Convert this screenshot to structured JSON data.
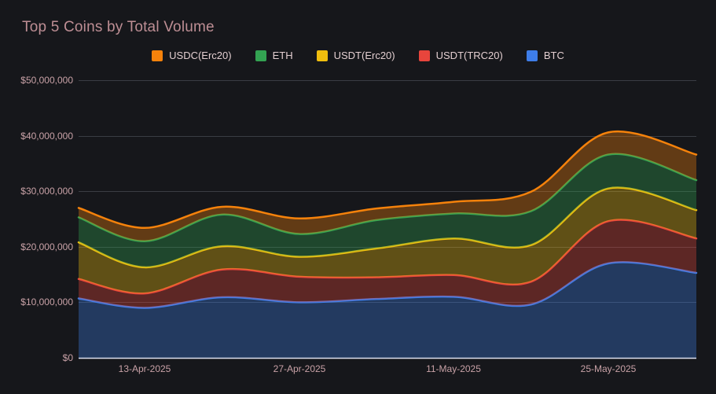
{
  "title": "Top 5 Coins by Total Volume",
  "colors": {
    "background": "#16171b",
    "title_text": "#bd8e94",
    "axis_text": "#c9a2a7",
    "legend_text": "#e3ced0",
    "gridline": "#3a3d44",
    "baseline": "#dcdfee",
    "usdc_erc20": "#F5820B",
    "eth": "#33A352",
    "usdt_erc20": "#F0BE0E",
    "usdt_trc20": "#E8453C",
    "btc": "#3E7DE8"
  },
  "legend": {
    "position": "top-center",
    "items": [
      {
        "label": "USDC(Erc20)",
        "color": "#F5820B"
      },
      {
        "label": "ETH",
        "color": "#33A352"
      },
      {
        "label": "USDT(Erc20)",
        "color": "#F0BE0E"
      },
      {
        "label": "USDT(TRC20)",
        "color": "#E8453C"
      },
      {
        "label": "BTC",
        "color": "#3E7DE8"
      }
    ]
  },
  "chart_data": {
    "type": "area",
    "stacked": true,
    "smooth": true,
    "title": "Top 5 Coins by Total Volume",
    "xlabel": "",
    "ylabel": "",
    "ylim": [
      0,
      50000000
    ],
    "grid": true,
    "legend_position": "top",
    "y_tick_values_millions": [
      0,
      10,
      20,
      30,
      40,
      50
    ],
    "y_tick_labels": [
      "$0",
      "$10,000,000",
      "$20,000,000",
      "$30,000,000",
      "$40,000,000",
      "$50,000,000"
    ],
    "x_tick_labels": [
      "13-Apr-2025",
      "27-Apr-2025",
      "11-May-2025",
      "25-May-2025"
    ],
    "x_tick_day_offsets": [
      6,
      20,
      34,
      48
    ],
    "x_domain_days": 56,
    "sample_dates": [
      "07-Apr-2025",
      "13-Apr-2025",
      "20-Apr-2025",
      "27-Apr-2025",
      "04-May-2025",
      "11-May-2025",
      "18-May-2025",
      "25-May-2025",
      "02-Jun-2025"
    ],
    "sample_day_offsets": [
      0,
      6,
      13,
      20,
      27,
      34,
      41,
      48,
      56
    ],
    "series_bottom_to_top": [
      {
        "name": "BTC",
        "color": "#3E7DE8",
        "values_millions_usd": [
          10.7,
          9.0,
          10.9,
          10.0,
          10.6,
          11.0,
          9.6,
          17.0,
          15.3
        ]
      },
      {
        "name": "USDT(TRC20)",
        "color": "#E8453C",
        "values_millions_usd": [
          3.5,
          2.6,
          5.0,
          4.6,
          3.9,
          3.9,
          4.1,
          7.6,
          6.2
        ]
      },
      {
        "name": "USDT(Erc20)",
        "color": "#F0BE0E",
        "values_millions_usd": [
          6.6,
          4.7,
          4.2,
          3.6,
          5.2,
          6.6,
          6.6,
          5.9,
          5.1
        ]
      },
      {
        "name": "ETH",
        "color": "#33A352",
        "values_millions_usd": [
          4.5,
          4.7,
          5.7,
          4.1,
          5.1,
          4.5,
          6.1,
          6.1,
          5.4
        ]
      },
      {
        "name": "USDC(Erc20)",
        "color": "#F5820B",
        "values_millions_usd": [
          1.7,
          2.4,
          1.4,
          2.8,
          2.1,
          2.1,
          3.5,
          4.0,
          4.6
        ]
      }
    ]
  }
}
